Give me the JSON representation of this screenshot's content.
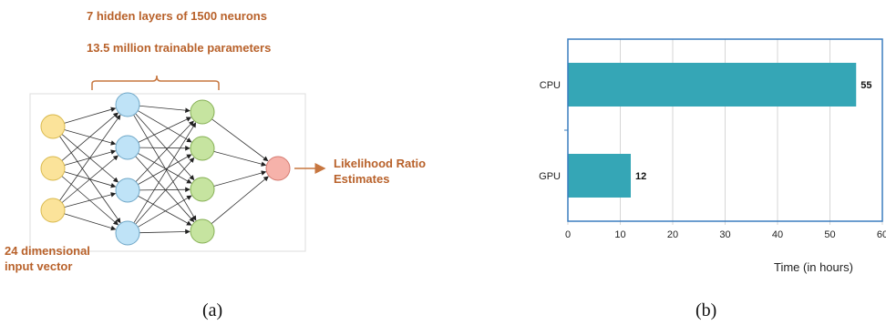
{
  "panel_a": {
    "caption": "(a)",
    "top_line_1": "7  hidden layers of 1500 neurons",
    "top_line_2": "13.5 million trainable parameters",
    "input_label_1": "24 dimensional",
    "input_label_2": "input vector",
    "output_label_1": "Likelihood Ratio",
    "output_label_2": "Estimates",
    "colors": {
      "input": "#fbe39a",
      "hidden1": "#bfe3f7",
      "hidden2": "#c6e4a0",
      "output": "#f6b2aa",
      "accent": "#b8612a"
    }
  },
  "panel_b": {
    "caption": "(b)",
    "chart_data": {
      "type": "bar",
      "orientation": "horizontal",
      "categories": [
        "CPU",
        "GPU"
      ],
      "values": [
        55,
        12
      ],
      "data_labels": [
        "55",
        "12"
      ],
      "xlabel": "Time (in hours)",
      "ylabel": "",
      "xlim": [
        0,
        60
      ],
      "xticks": [
        "0",
        "10",
        "20",
        "30",
        "40",
        "50",
        "60"
      ],
      "grid": true,
      "bar_color": "#35a6b6",
      "frame_color": "#3a7dbf"
    }
  }
}
